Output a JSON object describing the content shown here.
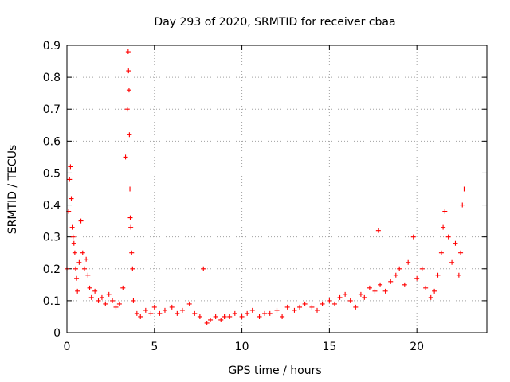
{
  "chart_data": {
    "type": "scatter",
    "title": "Day 293 of 2020, SRMTID for receiver cbaa",
    "xlabel": "GPS time / hours",
    "ylabel": "SRMTID / TECUs",
    "xlim": [
      0,
      24
    ],
    "ylim": [
      0,
      0.9
    ],
    "xticks": [
      "0",
      "5",
      "10",
      "15",
      "20"
    ],
    "yticks": [
      "0",
      "0.1",
      "0.2",
      "0.3",
      "0.4",
      "0.5",
      "0.6",
      "0.7",
      "0.8",
      "0.9"
    ],
    "grid": true,
    "marker": "+",
    "marker_color": "#ff0000",
    "series": [
      {
        "name": "SRMTID",
        "x": [
          0.0,
          0.1,
          0.15,
          0.2,
          0.25,
          0.3,
          0.35,
          0.4,
          0.45,
          0.5,
          0.55,
          0.6,
          0.7,
          0.8,
          0.9,
          1.0,
          1.1,
          1.2,
          1.3,
          1.4,
          1.6,
          1.8,
          2.0,
          2.2,
          2.4,
          2.6,
          2.8,
          3.0,
          3.2,
          3.35,
          3.45,
          3.5,
          3.52,
          3.55,
          3.57,
          3.6,
          3.62,
          3.65,
          3.7,
          3.75,
          3.8,
          4.0,
          4.2,
          4.5,
          4.8,
          5.0,
          5.3,
          5.6,
          6.0,
          6.3,
          6.6,
          7.0,
          7.3,
          7.6,
          7.8,
          8.0,
          8.2,
          8.5,
          8.8,
          9.0,
          9.3,
          9.6,
          10.0,
          10.3,
          10.6,
          11.0,
          11.3,
          11.6,
          12.0,
          12.3,
          12.6,
          13.0,
          13.3,
          13.6,
          14.0,
          14.3,
          14.6,
          15.0,
          15.3,
          15.6,
          15.9,
          16.2,
          16.5,
          16.8,
          17.0,
          17.3,
          17.6,
          17.8,
          17.9,
          18.2,
          18.5,
          18.8,
          19.0,
          19.3,
          19.5,
          19.8,
          20.0,
          20.3,
          20.5,
          20.8,
          21.0,
          21.2,
          21.4,
          21.5,
          21.6,
          21.8,
          22.0,
          22.2,
          22.4,
          22.5,
          22.6,
          22.7
        ],
        "y": [
          0.2,
          0.38,
          0.48,
          0.52,
          0.42,
          0.33,
          0.3,
          0.28,
          0.25,
          0.2,
          0.17,
          0.13,
          0.22,
          0.35,
          0.25,
          0.2,
          0.23,
          0.18,
          0.14,
          0.11,
          0.13,
          0.1,
          0.11,
          0.09,
          0.12,
          0.1,
          0.08,
          0.09,
          0.14,
          0.55,
          0.7,
          0.88,
          0.82,
          0.76,
          0.62,
          0.45,
          0.36,
          0.33,
          0.25,
          0.2,
          0.1,
          0.06,
          0.05,
          0.07,
          0.06,
          0.08,
          0.06,
          0.07,
          0.08,
          0.06,
          0.07,
          0.09,
          0.06,
          0.05,
          0.2,
          0.03,
          0.04,
          0.05,
          0.04,
          0.05,
          0.05,
          0.06,
          0.05,
          0.06,
          0.07,
          0.05,
          0.06,
          0.06,
          0.07,
          0.05,
          0.08,
          0.07,
          0.08,
          0.09,
          0.08,
          0.07,
          0.09,
          0.1,
          0.09,
          0.11,
          0.12,
          0.1,
          0.08,
          0.12,
          0.11,
          0.14,
          0.13,
          0.32,
          0.15,
          0.13,
          0.16,
          0.18,
          0.2,
          0.15,
          0.22,
          0.3,
          0.17,
          0.2,
          0.14,
          0.11,
          0.13,
          0.18,
          0.25,
          0.33,
          0.38,
          0.3,
          0.22,
          0.28,
          0.18,
          0.25,
          0.4,
          0.45
        ]
      }
    ]
  }
}
